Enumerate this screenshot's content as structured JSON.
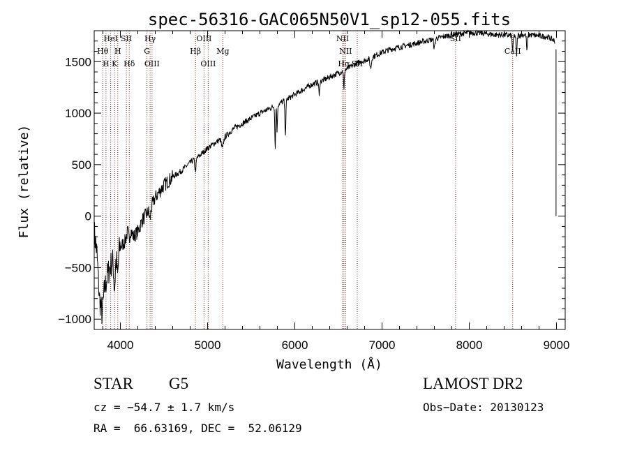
{
  "chart_data": {
    "type": "line",
    "title": "spec-56316-GAC065N50V1_sp12-055.fits",
    "xlabel": "Wavelength (Å)",
    "ylabel": "Flux (relative)",
    "xlim": [
      3700,
      9100
    ],
    "ylim": [
      -1100,
      1800
    ],
    "xticks": [
      4000,
      5000,
      6000,
      7000,
      8000,
      9000
    ],
    "yticks": [
      -1000,
      -500,
      0,
      500,
      1000,
      1500
    ],
    "grid": false,
    "legend": "none",
    "line_color": "#000000",
    "marker_line_color": "#8b1a1a",
    "spectrum_anchors": [
      [
        3700,
        -150
      ],
      [
        3730,
        -350
      ],
      [
        3760,
        -800
      ],
      [
        3790,
        -950
      ],
      [
        3820,
        -700
      ],
      [
        3860,
        -550
      ],
      [
        3900,
        -450
      ],
      [
        3940,
        -380
      ],
      [
        3980,
        -320
      ],
      [
        4050,
        -250
      ],
      [
        4100,
        -100
      ],
      [
        4150,
        -200
      ],
      [
        4200,
        -150
      ],
      [
        4250,
        -40
      ],
      [
        4300,
        20
      ],
      [
        4350,
        80
      ],
      [
        4400,
        180
      ],
      [
        4450,
        240
      ],
      [
        4500,
        300
      ],
      [
        4600,
        380
      ],
      [
        4700,
        440
      ],
      [
        4800,
        520
      ],
      [
        4900,
        580
      ],
      [
        5000,
        660
      ],
      [
        5100,
        720
      ],
      [
        5200,
        770
      ],
      [
        5300,
        850
      ],
      [
        5400,
        900
      ],
      [
        5500,
        950
      ],
      [
        5600,
        1000
      ],
      [
        5700,
        1040
      ],
      [
        5800,
        1080
      ],
      [
        5900,
        1130
      ],
      [
        6000,
        1180
      ],
      [
        6100,
        1230
      ],
      [
        6200,
        1280
      ],
      [
        6300,
        1310
      ],
      [
        6400,
        1350
      ],
      [
        6500,
        1390
      ],
      [
        6600,
        1430
      ],
      [
        6700,
        1480
      ],
      [
        6800,
        1510
      ],
      [
        6900,
        1550
      ],
      [
        7000,
        1590
      ],
      [
        7100,
        1620
      ],
      [
        7200,
        1640
      ],
      [
        7300,
        1660
      ],
      [
        7400,
        1680
      ],
      [
        7500,
        1700
      ],
      [
        7600,
        1720
      ],
      [
        7700,
        1740
      ],
      [
        7800,
        1760
      ],
      [
        7900,
        1770
      ],
      [
        8000,
        1780
      ],
      [
        8100,
        1780
      ],
      [
        8200,
        1770
      ],
      [
        8300,
        1760
      ],
      [
        8400,
        1760
      ],
      [
        8500,
        1750
      ],
      [
        8600,
        1760
      ],
      [
        8700,
        1760
      ],
      [
        8800,
        1750
      ],
      [
        8900,
        1740
      ],
      [
        8980,
        1700
      ]
    ],
    "absorption_dips": [
      [
        3933,
        300,
        12
      ],
      [
        3968,
        250,
        12
      ],
      [
        4101,
        120,
        10
      ],
      [
        4340,
        100,
        10
      ],
      [
        4861,
        120,
        10
      ],
      [
        5170,
        100,
        15
      ],
      [
        5775,
        420,
        6
      ],
      [
        5797,
        250,
        6
      ],
      [
        5892,
        320,
        8
      ],
      [
        6280,
        150,
        6
      ],
      [
        6563,
        200,
        6
      ],
      [
        6870,
        100,
        12
      ],
      [
        7600,
        90,
        10
      ],
      [
        8498,
        150,
        8
      ],
      [
        8542,
        200,
        8
      ],
      [
        8662,
        160,
        8
      ]
    ],
    "red_end": {
      "x": 8995,
      "y": 0,
      "top": 1620
    },
    "spectral_lines": [
      {
        "label": "Hθ",
        "x": 3798,
        "row": 1
      },
      {
        "label": "HeI",
        "x": 3889,
        "row": 0
      },
      {
        "label": "H",
        "x": 3835,
        "row": 2
      },
      {
        "label": "SII",
        "x": 4069,
        "row": 0
      },
      {
        "label": "H",
        "x": 3970,
        "row": 1
      },
      {
        "label": "K",
        "x": 3934,
        "row": 2
      },
      {
        "label": "Hδ",
        "x": 4102,
        "row": 2
      },
      {
        "label": "Hγ",
        "x": 4341,
        "row": 0
      },
      {
        "label": "G",
        "x": 4305,
        "row": 1
      },
      {
        "label": "OIII",
        "x": 4363,
        "row": 2
      },
      {
        "label": "OIII",
        "x": 4959,
        "row": 0
      },
      {
        "label": "Hβ",
        "x": 4861,
        "row": 1
      },
      {
        "label": "OIII",
        "x": 5007,
        "row": 2
      },
      {
        "label": "Mg",
        "x": 5175,
        "row": 1
      },
      {
        "label": "NII",
        "x": 6548,
        "row": 0
      },
      {
        "label": "NII",
        "x": 6583,
        "row": 1
      },
      {
        "label": "Hα",
        "x": 6563,
        "row": 2
      },
      {
        "label": "SII",
        "x": 6716,
        "row": 2
      },
      {
        "label": "SII",
        "x": 7843,
        "row": 0
      },
      {
        "label": "CaII",
        "x": 8498,
        "row": 1
      }
    ]
  },
  "info": {
    "object_class": "STAR",
    "subclass": "G5",
    "survey": "LAMOST DR2",
    "redshift": "cz = −54.7 ± 1.7 km/s",
    "obs_date": "Obs−Date: 20130123",
    "coords": "RA =  66.63169, DEC =  52.06129"
  }
}
